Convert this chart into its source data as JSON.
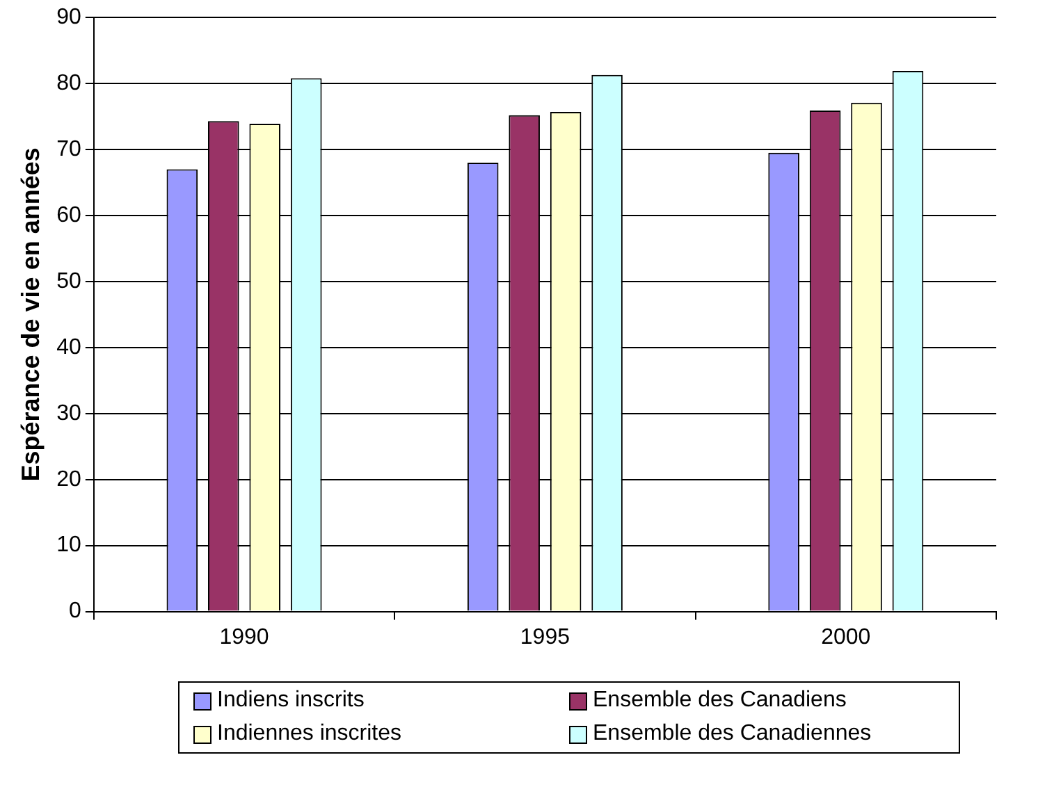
{
  "chart_data": {
    "type": "bar",
    "ylabel": "Espérance de vie en années",
    "categories": [
      "1990",
      "1995",
      "2000"
    ],
    "series": [
      {
        "name": "Indiens inscrits",
        "color": "#9999ff",
        "values": [
          67.0,
          68.0,
          69.5
        ]
      },
      {
        "name": "Ensemble des Canadiens",
        "color": "#993366",
        "values": [
          74.3,
          75.2,
          75.9
        ]
      },
      {
        "name": "Indiennes inscrites",
        "color": "#ffffcc",
        "values": [
          73.9,
          75.7,
          77.1
        ]
      },
      {
        "name": "Ensemble des Canadiennes",
        "color": "#ccffff",
        "values": [
          80.8,
          81.3,
          81.9
        ]
      }
    ],
    "ylim": [
      0,
      90
    ],
    "yticks": [
      0,
      10,
      20,
      30,
      40,
      50,
      60,
      70,
      80,
      90
    ],
    "grid": "y",
    "legend": "bottom"
  }
}
